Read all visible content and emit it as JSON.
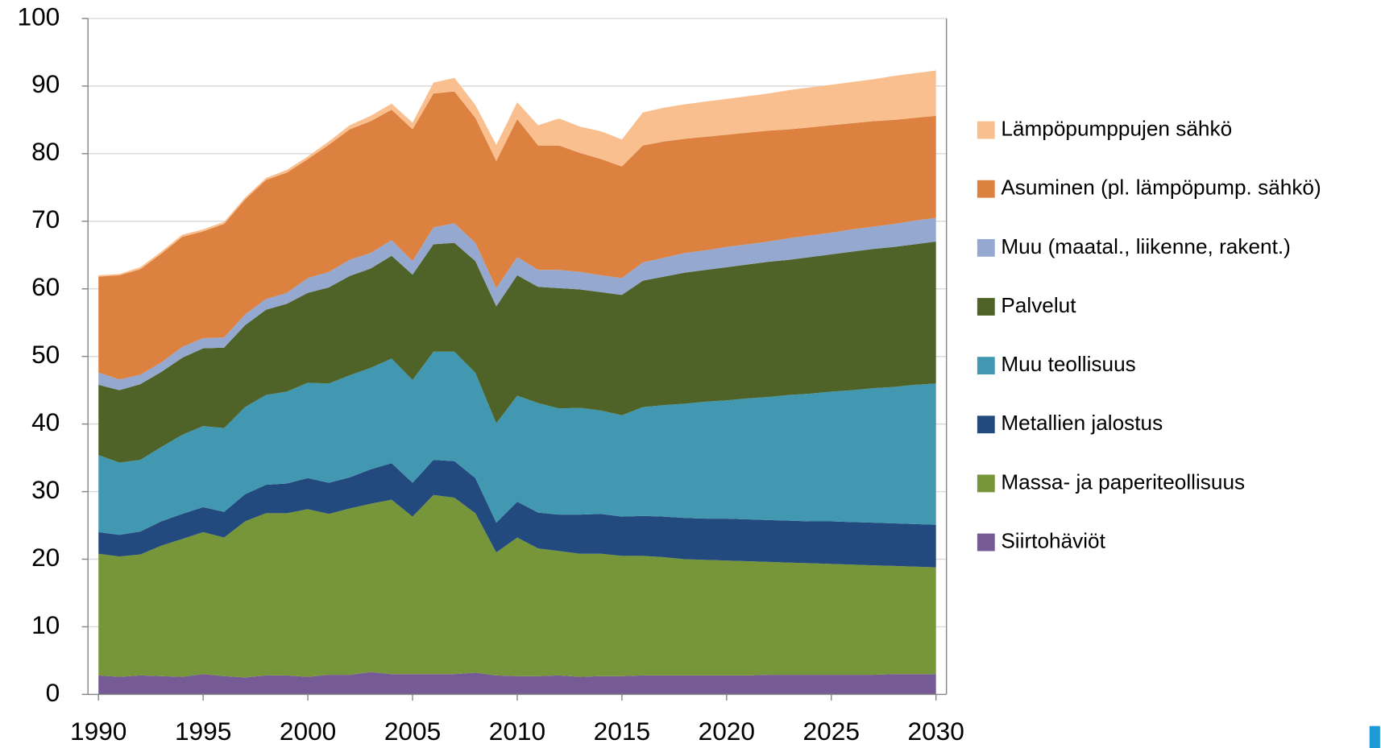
{
  "chart_data": {
    "type": "stacked-area",
    "x": [
      1990,
      1991,
      1992,
      1993,
      1994,
      1995,
      1996,
      1997,
      1998,
      1999,
      2000,
      2001,
      2002,
      2003,
      2004,
      2005,
      2006,
      2007,
      2008,
      2009,
      2010,
      2011,
      2012,
      2013,
      2014,
      2015,
      2016,
      2017,
      2018,
      2019,
      2020,
      2021,
      2022,
      2023,
      2024,
      2025,
      2026,
      2027,
      2028,
      2029,
      2030
    ],
    "xlim": [
      1989.5,
      2030.5
    ],
    "xticks": [
      1990,
      1995,
      2000,
      2005,
      2010,
      2015,
      2020,
      2025,
      2030
    ],
    "ylim": [
      0,
      100
    ],
    "yticks": [
      0,
      10,
      20,
      30,
      40,
      50,
      60,
      70,
      80,
      90,
      100
    ],
    "grid": true,
    "legend": "right",
    "series": [
      {
        "name": "Siirtohäviöt",
        "color": "#765a96",
        "values": [
          2.8,
          2.6,
          2.8,
          2.7,
          2.6,
          3.0,
          2.7,
          2.5,
          2.8,
          2.8,
          2.6,
          2.9,
          2.9,
          3.3,
          3.0,
          3.0,
          3.0,
          3.0,
          3.2,
          2.8,
          2.7,
          2.7,
          2.8,
          2.6,
          2.7,
          2.7,
          2.8,
          2.8,
          2.8,
          2.8,
          2.8,
          2.8,
          2.9,
          2.9,
          2.9,
          2.9,
          2.9,
          2.9,
          3.0,
          3.0,
          3.0
        ]
      },
      {
        "name": "Massa- ja paperiteollisuus",
        "color": "#77963a",
        "values": [
          18.0,
          17.8,
          17.9,
          19.3,
          20.4,
          21.0,
          20.5,
          23.1,
          24.0,
          24.0,
          24.8,
          23.8,
          24.6,
          24.9,
          25.8,
          23.3,
          26.5,
          26.1,
          23.6,
          18.2,
          20.5,
          18.9,
          18.4,
          18.2,
          18.1,
          17.8,
          17.7,
          17.5,
          17.2,
          17.1,
          17.0,
          16.9,
          16.7,
          16.6,
          16.5,
          16.4,
          16.3,
          16.2,
          16.0,
          15.9,
          15.8
        ]
      },
      {
        "name": "Metallien jalostus",
        "color": "#234a7e",
        "values": [
          3.2,
          3.2,
          3.4,
          3.6,
          3.7,
          3.7,
          3.8,
          4.0,
          4.2,
          4.4,
          4.6,
          4.6,
          4.6,
          5.1,
          5.4,
          5.0,
          5.2,
          5.4,
          5.2,
          4.4,
          5.3,
          5.3,
          5.4,
          5.8,
          5.9,
          5.8,
          5.9,
          6.0,
          6.1,
          6.1,
          6.2,
          6.2,
          6.2,
          6.2,
          6.2,
          6.3,
          6.3,
          6.3,
          6.3,
          6.3,
          6.3
        ]
      },
      {
        "name": "Muu teollisuus",
        "color": "#4198b0",
        "values": [
          11.4,
          10.7,
          10.6,
          11.0,
          11.7,
          12.0,
          12.4,
          12.9,
          13.3,
          13.6,
          14.1,
          14.7,
          15.1,
          15.0,
          15.5,
          15.2,
          16.0,
          16.2,
          15.6,
          14.7,
          15.7,
          16.2,
          15.7,
          15.8,
          15.3,
          15.0,
          16.1,
          16.5,
          16.9,
          17.3,
          17.5,
          17.9,
          18.2,
          18.6,
          18.9,
          19.2,
          19.5,
          19.9,
          20.2,
          20.6,
          20.9
        ]
      },
      {
        "name": "Palvelut",
        "color": "#4f6228",
        "values": [
          10.4,
          10.7,
          11.2,
          11.1,
          11.4,
          11.5,
          11.9,
          12.1,
          12.6,
          13.0,
          13.3,
          14.2,
          14.7,
          14.7,
          15.2,
          15.6,
          15.9,
          16.1,
          16.5,
          17.3,
          17.8,
          17.2,
          17.8,
          17.5,
          17.5,
          17.8,
          18.7,
          19.0,
          19.4,
          19.5,
          19.7,
          19.8,
          20.0,
          20.0,
          20.2,
          20.3,
          20.5,
          20.6,
          20.7,
          20.8,
          21.0
        ]
      },
      {
        "name": "Muu (maatal., liikenne, rakent.)",
        "color": "#95a8d0",
        "values": [
          1.8,
          1.6,
          1.4,
          1.4,
          1.6,
          1.5,
          1.5,
          1.6,
          1.6,
          1.6,
          2.2,
          2.3,
          2.4,
          2.3,
          2.3,
          2.0,
          2.5,
          2.9,
          2.7,
          2.7,
          2.7,
          2.5,
          2.7,
          2.6,
          2.5,
          2.5,
          2.7,
          2.8,
          2.9,
          2.9,
          3.0,
          3.0,
          3.0,
          3.2,
          3.2,
          3.2,
          3.3,
          3.3,
          3.4,
          3.5,
          3.5
        ]
      },
      {
        "name": "Asuminen (pl. lämpöpump. sähkö)",
        "color": "#dc8140",
        "values": [
          14.2,
          15.4,
          15.6,
          16.1,
          16.3,
          15.8,
          16.8,
          17.0,
          17.6,
          17.8,
          17.6,
          18.8,
          19.3,
          19.5,
          19.3,
          19.5,
          19.8,
          19.5,
          18.5,
          18.8,
          20.4,
          18.4,
          18.4,
          17.6,
          17.2,
          16.5,
          17.3,
          17.2,
          16.9,
          16.8,
          16.6,
          16.5,
          16.4,
          16.1,
          16.0,
          15.9,
          15.7,
          15.6,
          15.4,
          15.2,
          15.1
        ]
      },
      {
        "name": "Lämpöpumppujen sähkö",
        "color": "#f9bf8f",
        "values": [
          0.2,
          0.2,
          0.3,
          0.3,
          0.3,
          0.3,
          0.3,
          0.3,
          0.3,
          0.4,
          0.4,
          0.5,
          0.6,
          0.8,
          0.9,
          1.0,
          1.6,
          2.0,
          1.9,
          2.4,
          2.5,
          3.0,
          4.0,
          3.9,
          4.1,
          4.0,
          4.9,
          5.0,
          5.1,
          5.2,
          5.3,
          5.4,
          5.5,
          5.8,
          5.9,
          6.0,
          6.1,
          6.2,
          6.5,
          6.6,
          6.7
        ]
      }
    ]
  }
}
